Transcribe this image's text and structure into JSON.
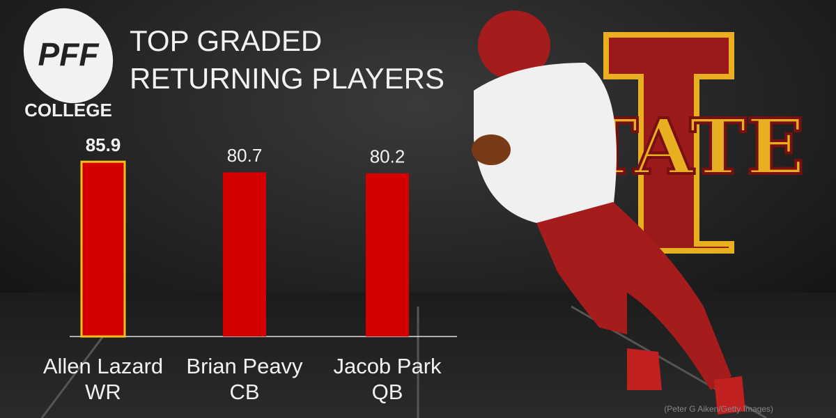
{
  "chart_data": {
    "type": "bar",
    "title_lines": [
      "TOP GRADED",
      "RETURNING PLAYERS"
    ],
    "categories": [
      "Allen Lazard",
      "Brian Peavy",
      "Jacob Park"
    ],
    "positions": [
      "WR",
      "CB",
      "QB"
    ],
    "values": [
      85.9,
      80.7,
      80.2
    ],
    "color": "#d40000",
    "highlight_color": "#f0c020",
    "highlight_index": 0
  },
  "logo": {
    "mark": "PFF",
    "subtitle": "COLLEGE"
  },
  "team_logo": "STATE",
  "credit": "(Peter G Aiken/Getty Images)"
}
